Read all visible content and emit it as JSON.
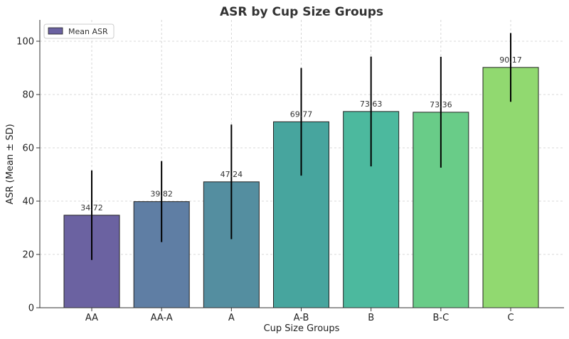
{
  "chart_data": {
    "type": "bar",
    "title": "ASR by Cup Size Groups",
    "xlabel": "Cup Size Groups",
    "ylabel": "ASR (Mean ± SD)",
    "categories": [
      "AA",
      "AA-A",
      "A",
      "A-B",
      "B",
      "B-C",
      "C"
    ],
    "series": [
      {
        "name": "Mean ASR",
        "values": [
          34.72,
          39.82,
          47.24,
          69.77,
          73.63,
          73.36,
          90.17
        ],
        "sd": [
          16.8,
          15.2,
          21.5,
          20.2,
          20.6,
          20.8,
          12.9
        ],
        "value_labels": [
          "34.72",
          "39.82",
          "47.24",
          "69.77",
          "73.63",
          "73.36",
          "90.17"
        ],
        "colors": [
          "#6b62a1",
          "#5f7ea4",
          "#548ea0",
          "#47a59e",
          "#4cb99e",
          "#69cc88",
          "#91d970"
        ]
      }
    ],
    "legend": {
      "label": "Mean ASR",
      "color": "#6b62a1",
      "placement": "top-left"
    },
    "ylim": [
      0,
      108
    ],
    "yticks": [
      0,
      20,
      40,
      60,
      80,
      100
    ],
    "grid": true
  }
}
